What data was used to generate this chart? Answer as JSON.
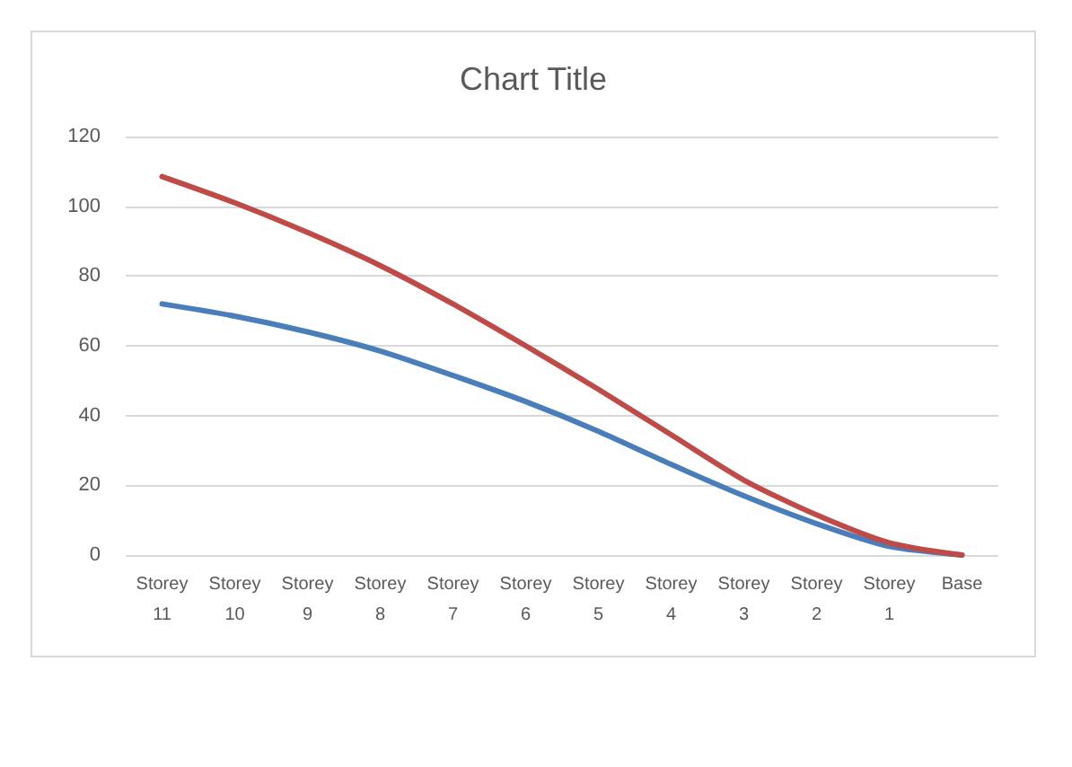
{
  "chart_data": {
    "type": "line",
    "title": "Chart Title",
    "categories": [
      "Storey 11",
      "Storey 10",
      "Storey 9",
      "Storey 8",
      "Storey 7",
      "Storey 6",
      "Storey 5",
      "Storey 4",
      "Storey 3",
      "Storey 2",
      "Storey 1",
      "Base"
    ],
    "series": [
      {
        "color": "#4a7ebb",
        "values": [
          72,
          68.5,
          64,
          58.5,
          51.5,
          44,
          35.5,
          26,
          17,
          9,
          2.5,
          0
        ]
      },
      {
        "color": "#be4b48",
        "values": [
          108.5,
          101,
          92.5,
          83,
          72,
          60,
          47.5,
          34.5,
          21.5,
          11.5,
          3.5,
          0
        ]
      }
    ],
    "ylim": [
      0,
      120
    ],
    "yticks": [
      0,
      20,
      40,
      60,
      80,
      100,
      120
    ],
    "grid": "y",
    "marker": "none",
    "line_style": "solid"
  }
}
